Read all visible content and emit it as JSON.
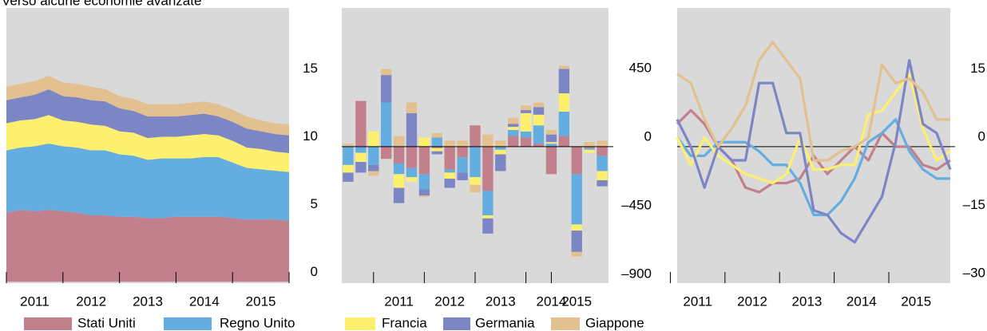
{
  "title": "Verso alcune economie avanzate",
  "chart_data": [
    {
      "type": "area",
      "stacked": true,
      "x": [
        2011,
        2011.25,
        2011.5,
        2011.75,
        2012,
        2012.25,
        2012.5,
        2012.75,
        2013,
        2013.25,
        2013.5,
        2013.75,
        2014,
        2014.25,
        2014.5,
        2014.75,
        2015,
        2015.25,
        2015.5,
        2015.75,
        2016
      ],
      "xlim": [
        2011,
        2016
      ],
      "xticks": [
        2011,
        2012,
        2013,
        2014,
        2015,
        2016
      ],
      "ylim": [
        -0.1,
        20.2
      ],
      "yticks": [
        0,
        5,
        10,
        15
      ],
      "series": [
        {
          "name": "Stati Uniti",
          "color": "#c27f8c",
          "values": [
            5.1,
            5.3,
            5.2,
            5.3,
            5.2,
            5.1,
            4.9,
            4.9,
            4.8,
            4.8,
            4.7,
            4.7,
            4.8,
            4.8,
            4.8,
            4.8,
            4.7,
            4.6,
            4.6,
            4.6,
            4.5
          ]
        },
        {
          "name": "Regno Unito",
          "color": "#64ade0",
          "values": [
            4.6,
            4.6,
            4.8,
            4.9,
            4.8,
            4.8,
            4.8,
            4.8,
            4.6,
            4.5,
            4.3,
            4.4,
            4.3,
            4.3,
            4.4,
            4.4,
            4.1,
            3.8,
            3.7,
            3.6,
            3.6
          ]
        },
        {
          "name": "Francia",
          "color": "#fdf06e",
          "values": [
            2.0,
            2.0,
            2.0,
            2.1,
            1.9,
            1.9,
            1.9,
            1.8,
            1.7,
            1.7,
            1.6,
            1.6,
            1.6,
            1.7,
            1.7,
            1.6,
            1.6,
            1.5,
            1.5,
            1.4,
            1.4
          ]
        },
        {
          "name": "Germania",
          "color": "#7d86c5",
          "values": [
            1.7,
            1.7,
            1.8,
            1.9,
            1.8,
            1.8,
            1.8,
            1.8,
            1.7,
            1.6,
            1.6,
            1.5,
            1.5,
            1.5,
            1.5,
            1.4,
            1.4,
            1.4,
            1.3,
            1.3,
            1.3
          ]
        },
        {
          "name": "Giappone",
          "color": "#e2c08f",
          "values": [
            1.0,
            1.0,
            1.0,
            1.0,
            1.0,
            1.0,
            1.0,
            0.9,
            0.9,
            0.9,
            0.9,
            0.9,
            0.9,
            0.9,
            0.9,
            0.9,
            0.9,
            0.9,
            0.8,
            0.8,
            0.8
          ]
        }
      ]
    },
    {
      "type": "bar",
      "stacked": true,
      "zero_line": true,
      "categories": [
        null,
        null,
        null,
        null,
        "2011",
        null,
        null,
        null,
        "2012",
        null,
        null,
        null,
        "2013",
        null,
        null,
        null,
        "2014",
        null,
        "2015",
        null,
        null
      ],
      "ylim": [
        -895,
        910
      ],
      "yticks": [
        {
          "value": -900,
          "label": "–900"
        },
        {
          "value": -450,
          "label": "–450"
        },
        0,
        450
      ],
      "series": [
        {
          "color": "#c27f8c",
          "values": [
            0,
            300,
            0,
            -80,
            -110,
            -140,
            -180,
            -10,
            -150,
            -70,
            140,
            -290,
            0,
            70,
            60,
            20,
            -180,
            70,
            -180,
            -10,
            -60
          ]
        },
        {
          "color": "#64ade0",
          "values": [
            -120,
            -40,
            -120,
            290,
            -70,
            -60,
            -100,
            60,
            -20,
            -100,
            -200,
            -160,
            -20,
            40,
            40,
            120,
            20,
            160,
            -330,
            -10,
            -100
          ]
        },
        {
          "color": "#fdf06e",
          "values": [
            -50,
            -60,
            100,
            0,
            -90,
            -30,
            60,
            -20,
            -40,
            0,
            -50,
            -20,
            -30,
            20,
            120,
            70,
            10,
            120,
            -40,
            -20,
            -60
          ]
        },
        {
          "color": "#7d86c5",
          "values": [
            -60,
            -70,
            -40,
            180,
            -100,
            220,
            -40,
            -20,
            -60,
            -50,
            0,
            -100,
            -110,
            20,
            20,
            50,
            50,
            160,
            -140,
            0,
            -40
          ]
        },
        {
          "color": "#e2c08f",
          "values": [
            20,
            0,
            -30,
            40,
            70,
            70,
            -10,
            30,
            40,
            40,
            -50,
            80,
            40,
            40,
            30,
            30,
            30,
            20,
            -30,
            30,
            40
          ]
        }
      ]
    },
    {
      "type": "line",
      "zero_line": true,
      "categories": [
        null,
        null,
        "2011",
        null,
        null,
        null,
        "2012",
        null,
        null,
        null,
        "2013",
        null,
        null,
        null,
        "2014",
        null,
        null,
        null,
        "2015",
        null,
        null
      ],
      "ylim": [
        -30,
        30.5
      ],
      "yticks": [
        {
          "value": -30,
          "label": "–30"
        },
        {
          "value": -15,
          "label": "–15"
        },
        0,
        15
      ],
      "series": [
        {
          "color": "#c27f8c",
          "values": [
            5,
            8,
            5,
            0,
            -3,
            -9,
            -10,
            -8,
            -8,
            -7,
            -2,
            -6,
            -3,
            0,
            -3,
            3,
            0,
            0,
            -4,
            -5,
            -3
          ]
        },
        {
          "color": "#64ade0",
          "values": [
            2,
            -2,
            -2,
            1,
            1,
            1,
            -1,
            -4,
            -4,
            -8,
            -15,
            -15,
            -12,
            -7,
            1,
            3,
            6,
            -1,
            -5,
            -7,
            -7
          ]
        },
        {
          "color": "#fdf06e",
          "values": [
            2,
            -4,
            2,
            -2,
            -4,
            -6,
            -7,
            -8,
            -6,
            2,
            -5,
            -5,
            -4,
            -4,
            7,
            8,
            12,
            16,
            4,
            -3,
            -1
          ]
        },
        {
          "color": "#7d86c5",
          "values": [
            6,
            0,
            -9,
            0,
            -3,
            -3,
            14,
            14,
            3,
            3,
            -14,
            -15,
            -19,
            -21,
            -16,
            -11,
            1,
            19,
            5,
            3,
            -5
          ]
        },
        {
          "color": "#e2c08f",
          "values": [
            16,
            14,
            6,
            0,
            4,
            9,
            19,
            23,
            19,
            15,
            -3,
            -3,
            -1,
            0,
            2,
            18,
            14,
            15,
            12,
            6,
            6
          ]
        }
      ]
    }
  ]
}
